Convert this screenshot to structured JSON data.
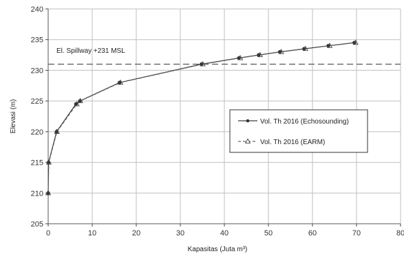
{
  "chart_data": {
    "type": "line",
    "xlabel": "Kapasitas (Juta m³)",
    "ylabel": "Elevasi (m)",
    "xlim": [
      0,
      80
    ],
    "ylim": [
      205,
      240
    ],
    "xticks": [
      0,
      10,
      20,
      30,
      40,
      50,
      60,
      70,
      80
    ],
    "yticks": [
      205,
      210,
      215,
      220,
      225,
      230,
      235,
      240
    ],
    "grid": true,
    "legend_position": "right",
    "series": [
      {
        "name": "Vol. Th 2016 (Echosounding)",
        "color": "#3a3a3a",
        "marker": "circle",
        "line_style": "solid",
        "x": [
          0,
          0.1,
          1.9,
          6.3,
          7.2,
          16.2,
          34.8,
          43.3,
          47.8,
          52.6,
          58.1,
          63.6,
          69.5
        ],
        "y": [
          210,
          215,
          220,
          224.5,
          225,
          228,
          231,
          232,
          232.5,
          233,
          233.5,
          234,
          234.5
        ]
      },
      {
        "name": "Vol. Th 2016 (EARM)",
        "color": "#666666",
        "marker": "triangle",
        "line_style": "dashed",
        "x": [
          0,
          0.15,
          2.0,
          6.5,
          7.3,
          16.4,
          35.1,
          43.6,
          48.1,
          52.9,
          58.4,
          63.9,
          69.8
        ],
        "y": [
          210,
          215,
          220,
          224.5,
          225,
          228,
          231,
          232,
          232.5,
          233,
          233.5,
          234,
          234.5
        ]
      }
    ],
    "reference_line": {
      "y": 231,
      "label": "El. Spillway +231 MSL",
      "color": "#555555",
      "style": "dashed"
    }
  }
}
